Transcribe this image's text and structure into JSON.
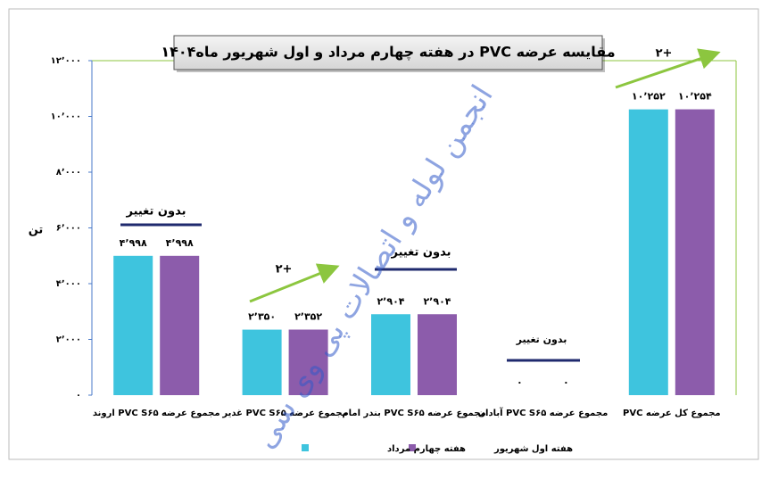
{
  "chart_data": {
    "type": "bar",
    "title": "مقایسه عرضه PVC در هفته چهارم مرداد و اول شهریور ماه۱۴۰۴",
    "y_label": "تن",
    "categories": [
      "مجموع عرضه PVC S۶۵ اروند",
      "مجموع عرضه PVC S۶۵ غدیر",
      "مجموع عرضه PVC S۶۵ بندر امام",
      "مجموع عرضه PVC S۶۵ آبادان",
      "مجموع کل عرضه PVC"
    ],
    "series": [
      {
        "name": "هفته چهارم مرداد",
        "color": "#3ec4de",
        "values": [
          4998,
          2350,
          2904,
          0,
          10252
        ],
        "value_labels": [
          "۴٬۹۹۸",
          "۲٬۳۵۰",
          "۲٬۹۰۴",
          "۰",
          "۱۰٬۲۵۲"
        ]
      },
      {
        "name": "هفته اول شهریور",
        "color": "#8c5cab",
        "values": [
          4998,
          2352,
          2904,
          0,
          10254
        ],
        "value_labels": [
          "۴٬۹۹۸",
          "۲٬۳۵۲",
          "۲٬۹۰۴",
          "۰",
          "۱۰٬۲۵۴"
        ]
      }
    ],
    "ylim": [
      0,
      12000
    ],
    "yticks": [
      {
        "value": 0,
        "label": "۰"
      },
      {
        "value": 2000,
        "label": "۲٬۰۰۰"
      },
      {
        "value": 4000,
        "label": "۴٬۰۰۰"
      },
      {
        "value": 6000,
        "label": "۶٬۰۰۰"
      },
      {
        "value": 8000,
        "label": "۸٬۰۰۰"
      },
      {
        "value": 10000,
        "label": "۱۰٬۰۰۰"
      },
      {
        "value": 12000,
        "label": "۱۲٬۰۰۰"
      }
    ],
    "annotations": [
      "بدون تغییر",
      "+۲",
      "بدون تغییر",
      "بدون تغییر",
      "+۲"
    ],
    "watermark": "انجمن لوله و اتصالات پی وی سی"
  }
}
